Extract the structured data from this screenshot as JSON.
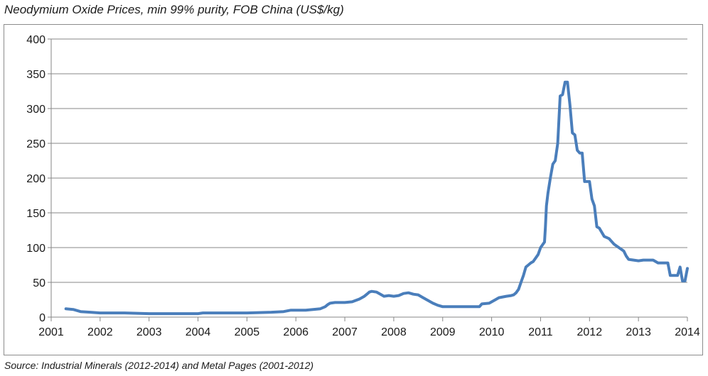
{
  "title": "Neodymium Oxide Prices, min 99% purity, FOB China (US$/kg)",
  "source": "Source: Industrial Minerals (2012-2014) and Metal Pages (2001-2012)",
  "chart_data": {
    "type": "line",
    "title": "Neodymium Oxide Prices, min 99% purity, FOB China (US$/kg)",
    "xlabel": "",
    "ylabel": "",
    "xlim": [
      2001,
      2014
    ],
    "ylim": [
      0,
      400
    ],
    "x_ticks": [
      2001,
      2002,
      2003,
      2004,
      2005,
      2006,
      2007,
      2008,
      2009,
      2010,
      2011,
      2012,
      2013,
      2014
    ],
    "y_ticks": [
      0,
      50,
      100,
      150,
      200,
      250,
      300,
      350,
      400
    ],
    "grid": "horizontal",
    "legend": "none",
    "line_color": "#4a7ebb",
    "series": [
      {
        "x": [
          2001.3,
          2001.45,
          2001.6,
          2001.8,
          2002.0,
          2002.5,
          2003.0,
          2003.5,
          2004.0,
          2004.1,
          2004.5,
          2005.0,
          2005.5,
          2005.75,
          2005.9,
          2006.2,
          2006.5,
          2006.6,
          2006.65,
          2006.7,
          2006.8,
          2006.9,
          2007.0,
          2007.15,
          2007.3,
          2007.4,
          2007.45,
          2007.5,
          2007.55,
          2007.65,
          2007.75,
          2007.8,
          2007.9,
          2008.0,
          2008.1,
          2008.2,
          2008.3,
          2008.4,
          2008.5,
          2008.6,
          2008.7,
          2008.8,
          2008.9,
          2009.0,
          2009.2,
          2009.5,
          2009.75,
          2009.8,
          2009.95,
          2010.05,
          2010.15,
          2010.3,
          2010.4,
          2010.45,
          2010.5,
          2010.55,
          2010.6,
          2010.65,
          2010.7,
          2010.75,
          2010.8,
          2010.85,
          2010.9,
          2010.95,
          2011.0,
          2011.05,
          2011.08,
          2011.1,
          2011.12,
          2011.15,
          2011.2,
          2011.25,
          2011.3,
          2011.35,
          2011.4,
          2011.45,
          2011.5,
          2011.55,
          2011.6,
          2011.65,
          2011.7,
          2011.75,
          2011.8,
          2011.85,
          2011.9,
          2011.95,
          2012.0,
          2012.05,
          2012.1,
          2012.15,
          2012.2,
          2012.3,
          2012.4,
          2012.5,
          2012.6,
          2012.7,
          2012.75,
          2012.8,
          2012.9,
          2013.0,
          2013.1,
          2013.2,
          2013.3,
          2013.4,
          2013.5,
          2013.6,
          2013.65,
          2013.7,
          2013.75,
          2013.8,
          2013.85,
          2013.9,
          2013.95,
          2014.0
        ],
        "y": [
          12,
          11,
          8,
          7,
          6,
          6,
          5,
          5,
          5,
          6,
          6,
          6,
          7,
          8,
          10,
          10,
          12,
          15,
          18,
          20,
          21,
          21,
          21,
          22,
          26,
          30,
          33,
          36,
          37,
          36,
          32,
          30,
          31,
          30,
          31,
          34,
          35,
          33,
          32,
          28,
          24,
          20,
          17,
          15,
          15,
          15,
          15,
          19,
          20,
          24,
          28,
          30,
          31,
          32,
          35,
          40,
          50,
          60,
          72,
          75,
          78,
          80,
          85,
          90,
          100,
          105,
          108,
          130,
          160,
          178,
          200,
          220,
          225,
          250,
          318,
          320,
          338,
          338,
          305,
          265,
          262,
          240,
          236,
          236,
          195,
          195,
          195,
          170,
          160,
          130,
          128,
          116,
          113,
          105,
          100,
          95,
          88,
          83,
          82,
          81,
          82,
          82,
          82,
          78,
          78,
          78,
          60,
          60,
          60,
          60,
          72,
          52,
          52,
          70
        ]
      }
    ]
  }
}
